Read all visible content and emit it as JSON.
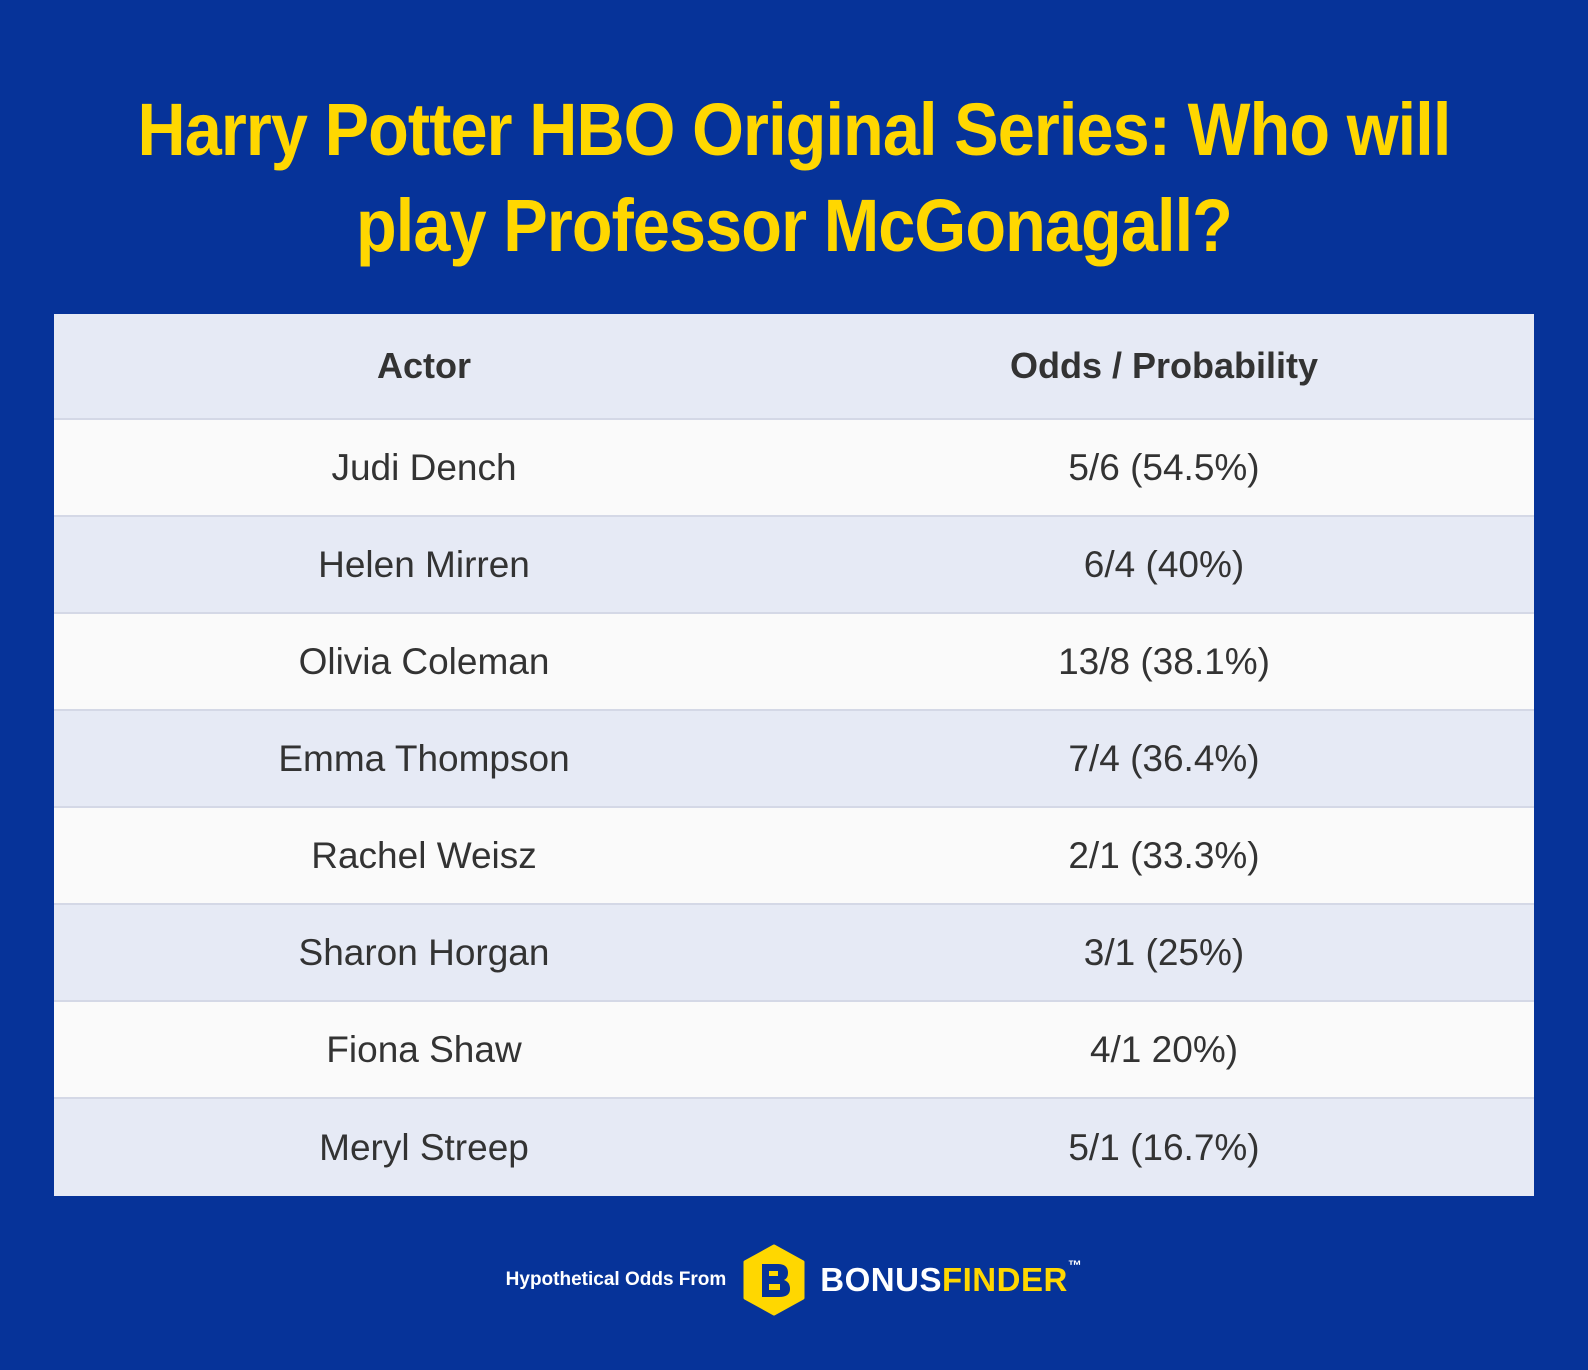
{
  "title": "Harry Potter HBO Original Series: Who will play Professor McGonagall?",
  "chart_data": {
    "type": "table",
    "title": "Harry Potter HBO Original Series: Who will play Professor McGonagall?",
    "columns": [
      "Actor",
      "Odds / Probability"
    ],
    "rows": [
      [
        "Judi Dench",
        "5/6 (54.5%)"
      ],
      [
        "Helen Mirren",
        "6/4 (40%)"
      ],
      [
        "Olivia Coleman",
        "13/8 (38.1%)"
      ],
      [
        "Emma Thompson",
        "7/4 (36.4%)"
      ],
      [
        "Rachel Weisz",
        "2/1 (33.3%)"
      ],
      [
        "Sharon Horgan",
        "3/1 (25%)"
      ],
      [
        "Fiona Shaw",
        "4/1 20%)"
      ],
      [
        "Meryl Streep",
        "5/1 (16.7%)"
      ]
    ]
  },
  "footer": {
    "text": "Hypothetical Odds From",
    "brand_part1": "BONUS",
    "brand_part2": "FINDER",
    "trademark": "™",
    "logo_icon": "bonusfinder-logo-icon"
  },
  "colors": {
    "background": "#063399",
    "title": "#FFD700",
    "header_row": "#E6EAF5",
    "row_light": "#FAFAFA",
    "row_alt": "#E6EAF5",
    "text": "#333333"
  }
}
